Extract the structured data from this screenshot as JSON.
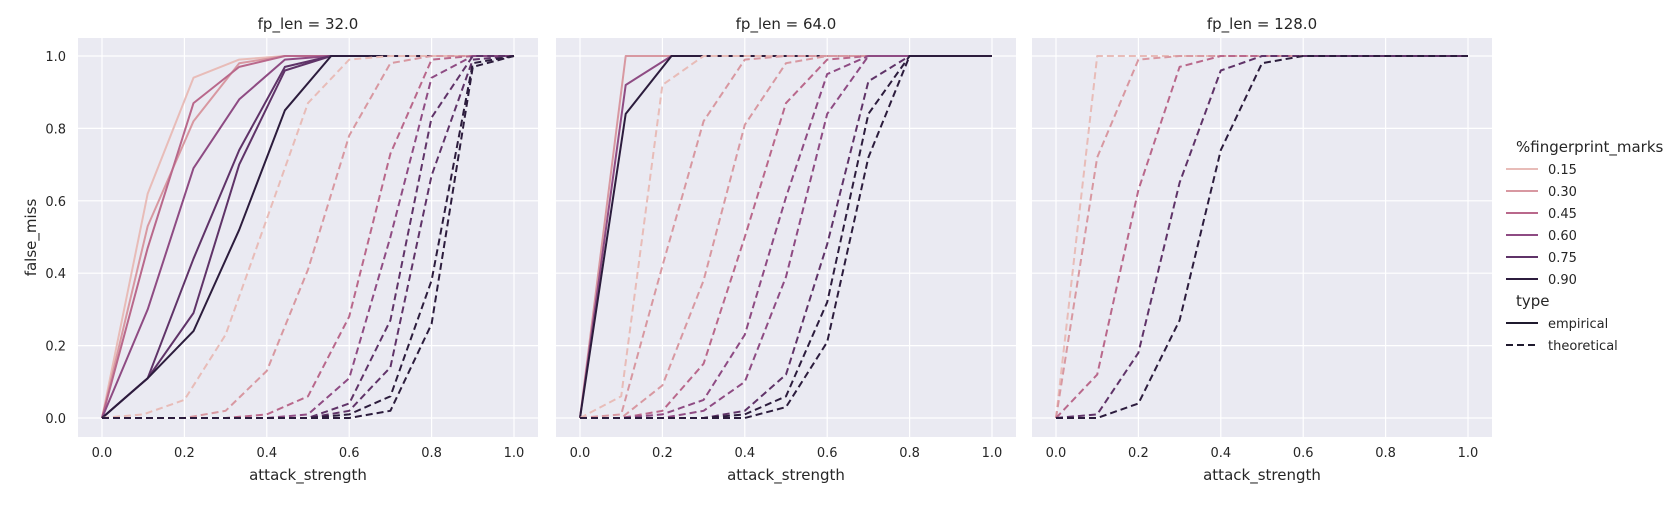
{
  "chart_data": {
    "type": "line",
    "xlabel": "attack_strength",
    "ylabel": "false_miss",
    "xlim": [
      0.0,
      1.0
    ],
    "ylim": [
      0.0,
      1.0
    ],
    "xticks": [
      "0.0",
      "0.2",
      "0.4",
      "0.6",
      "0.8",
      "1.0"
    ],
    "yticks": [
      "0.0",
      "0.2",
      "0.4",
      "0.6",
      "0.8",
      "1.0"
    ],
    "grid": true,
    "legend": {
      "placement": "right",
      "hue_title": "%fingerprint_marks",
      "hue_entries": [
        {
          "label": "0.15",
          "color": "#e8bcb8"
        },
        {
          "label": "0.30",
          "color": "#d898a1"
        },
        {
          "label": "0.45",
          "color": "#b9688b"
        },
        {
          "label": "0.60",
          "color": "#8e4b83"
        },
        {
          "label": "0.75",
          "color": "#5f3368"
        },
        {
          "label": "0.90",
          "color": "#2c1c3d"
        }
      ],
      "style_title": "type",
      "style_entries": [
        {
          "label": "empirical",
          "dash": "solid"
        },
        {
          "label": "theoretical",
          "dash": "dashed"
        }
      ]
    },
    "panels": [
      {
        "title": "fp_len = 32.0",
        "series": [
          {
            "hue": "0.15",
            "type": "empirical",
            "x": [
              0,
              0.111,
              0.222,
              0.333,
              0.444,
              0.556,
              0.667,
              0.778,
              0.889,
              1.0
            ],
            "y": [
              0,
              0.62,
              0.94,
              0.99,
              1,
              1,
              1,
              1,
              1,
              1
            ]
          },
          {
            "hue": "0.30",
            "type": "empirical",
            "x": [
              0,
              0.111,
              0.222,
              0.333,
              0.444,
              0.556,
              0.667,
              0.778,
              0.889,
              1.0
            ],
            "y": [
              0,
              0.53,
              0.82,
              0.98,
              1,
              1,
              1,
              1,
              1,
              1
            ]
          },
          {
            "hue": "0.45",
            "type": "empirical",
            "x": [
              0,
              0.111,
              0.222,
              0.333,
              0.444,
              0.556,
              0.667,
              0.778,
              0.889,
              1.0
            ],
            "y": [
              0,
              0.47,
              0.87,
              0.97,
              1,
              1,
              1,
              1,
              1,
              1
            ]
          },
          {
            "hue": "0.60",
            "type": "empirical",
            "x": [
              0,
              0.111,
              0.222,
              0.333,
              0.444,
              0.556,
              0.667,
              0.778,
              0.889,
              1.0
            ],
            "y": [
              0,
              0.3,
              0.69,
              0.88,
              0.99,
              1,
              1,
              1,
              1,
              1
            ]
          },
          {
            "hue": "0.75",
            "type": "empirical",
            "x": [
              0,
              0.111,
              0.222,
              0.333,
              0.444,
              0.556,
              0.667,
              0.778,
              0.889,
              1.0
            ],
            "y": [
              0,
              0.11,
              0.44,
              0.74,
              0.97,
              1,
              1,
              1,
              1,
              1
            ]
          },
          {
            "hue": "0.75",
            "type": "empirical",
            "x": [
              0,
              0.111,
              0.222,
              0.333,
              0.444,
              0.556,
              0.667,
              0.778,
              0.889,
              1.0
            ],
            "y": [
              0,
              0.11,
              0.29,
              0.7,
              0.96,
              1,
              1,
              1,
              1,
              1
            ]
          },
          {
            "hue": "0.90",
            "type": "empirical",
            "x": [
              0,
              0.111,
              0.222,
              0.333,
              0.444,
              0.556,
              0.667,
              0.778,
              0.889,
              1.0
            ],
            "y": [
              0,
              0.11,
              0.24,
              0.52,
              0.85,
              1,
              1,
              1,
              1,
              1
            ]
          },
          {
            "hue": "0.15",
            "type": "theoretical",
            "x": [
              0,
              0.1,
              0.2,
              0.3,
              0.4,
              0.5,
              0.6,
              0.7,
              0.8,
              0.9,
              1.0
            ],
            "y": [
              0,
              0.01,
              0.05,
              0.23,
              0.55,
              0.87,
              0.99,
              1,
              1,
              1,
              1
            ]
          },
          {
            "hue": "0.30",
            "type": "theoretical",
            "x": [
              0,
              0.1,
              0.2,
              0.3,
              0.4,
              0.5,
              0.6,
              0.7,
              0.8,
              0.9,
              1.0
            ],
            "y": [
              0,
              0,
              0,
              0.02,
              0.13,
              0.41,
              0.78,
              0.98,
              1,
              1,
              1
            ]
          },
          {
            "hue": "0.45",
            "type": "theoretical",
            "x": [
              0,
              0.1,
              0.2,
              0.3,
              0.4,
              0.5,
              0.6,
              0.7,
              0.8,
              0.9,
              1.0
            ],
            "y": [
              0,
              0,
              0,
              0,
              0.01,
              0.06,
              0.28,
              0.73,
              0.99,
              1,
              1
            ]
          },
          {
            "hue": "0.60",
            "type": "theoretical",
            "x": [
              0,
              0.1,
              0.2,
              0.3,
              0.4,
              0.5,
              0.6,
              0.7,
              0.8,
              0.9,
              1.0
            ],
            "y": [
              0,
              0,
              0,
              0,
              0,
              0.01,
              0.11,
              0.5,
              0.94,
              1,
              1
            ]
          },
          {
            "hue": "0.75",
            "type": "theoretical",
            "x": [
              0,
              0.1,
              0.2,
              0.3,
              0.4,
              0.5,
              0.6,
              0.7,
              0.8,
              0.9,
              1.0
            ],
            "y": [
              0,
              0,
              0,
              0,
              0,
              0,
              0.04,
              0.27,
              0.83,
              1,
              1
            ]
          },
          {
            "hue": "0.75",
            "type": "theoretical",
            "x": [
              0,
              0.1,
              0.2,
              0.3,
              0.4,
              0.5,
              0.6,
              0.7,
              0.8,
              0.9,
              1.0
            ],
            "y": [
              0,
              0,
              0,
              0,
              0,
              0,
              0.02,
              0.14,
              0.67,
              0.99,
              1
            ]
          },
          {
            "hue": "0.90",
            "type": "theoretical",
            "x": [
              0,
              0.1,
              0.2,
              0.3,
              0.4,
              0.5,
              0.6,
              0.7,
              0.8,
              0.9,
              1.0
            ],
            "y": [
              0,
              0,
              0,
              0,
              0,
              0,
              0.01,
              0.06,
              0.38,
              0.98,
              1
            ]
          },
          {
            "hue": "0.90",
            "type": "theoretical",
            "x": [
              0,
              0.1,
              0.2,
              0.3,
              0.4,
              0.5,
              0.6,
              0.7,
              0.8,
              0.9,
              1.0
            ],
            "y": [
              0,
              0,
              0,
              0,
              0,
              0,
              0,
              0.02,
              0.26,
              0.97,
              1
            ]
          }
        ]
      },
      {
        "title": "fp_len = 64.0",
        "series": [
          {
            "hue": "0.30",
            "type": "empirical",
            "x": [
              0,
              0.111,
              0.222,
              0.333,
              0.444,
              0.556,
              0.667,
              0.778,
              0.889,
              1.0
            ],
            "y": [
              0,
              1,
              1,
              1,
              1,
              1,
              1,
              1,
              1,
              1
            ]
          },
          {
            "hue": "0.60",
            "type": "empirical",
            "x": [
              0,
              0.111,
              0.222,
              0.333,
              0.444,
              0.556,
              0.667,
              0.778,
              0.889,
              1.0
            ],
            "y": [
              0,
              0.92,
              1,
              1,
              1,
              1,
              1,
              1,
              1,
              1
            ]
          },
          {
            "hue": "0.90",
            "type": "empirical",
            "x": [
              0,
              0.111,
              0.222,
              0.333,
              0.444,
              0.556,
              0.667,
              0.778,
              0.889,
              1.0
            ],
            "y": [
              0,
              0.84,
              1,
              1,
              1,
              1,
              1,
              1,
              1,
              1
            ]
          },
          {
            "hue": "0.15",
            "type": "theoretical",
            "x": [
              0,
              0.1,
              0.2,
              0.3,
              0.4,
              0.5,
              0.6,
              0.7,
              0.8,
              0.9,
              1.0
            ],
            "y": [
              0,
              0.06,
              0.92,
              1,
              1,
              1,
              1,
              1,
              1,
              1,
              1
            ]
          },
          {
            "hue": "0.30",
            "type": "theoretical",
            "x": [
              0,
              0.1,
              0.2,
              0.3,
              0.4,
              0.5,
              0.6,
              0.7,
              0.8,
              0.9,
              1.0
            ],
            "y": [
              0,
              0.01,
              0.42,
              0.82,
              0.99,
              1,
              1,
              1,
              1,
              1,
              1
            ]
          },
          {
            "hue": "0.30",
            "type": "theoretical",
            "x": [
              0,
              0.1,
              0.2,
              0.3,
              0.4,
              0.5,
              0.6,
              0.7,
              0.8,
              0.9,
              1.0
            ],
            "y": [
              0,
              0,
              0.09,
              0.38,
              0.81,
              0.98,
              1,
              1,
              1,
              1,
              1
            ]
          },
          {
            "hue": "0.45",
            "type": "theoretical",
            "x": [
              0,
              0.1,
              0.2,
              0.3,
              0.4,
              0.5,
              0.6,
              0.7,
              0.8,
              0.9,
              1.0
            ],
            "y": [
              0,
              0,
              0.02,
              0.15,
              0.5,
              0.87,
              0.99,
              1,
              1,
              1,
              1
            ]
          },
          {
            "hue": "0.60",
            "type": "theoretical",
            "x": [
              0,
              0.1,
              0.2,
              0.3,
              0.4,
              0.5,
              0.6,
              0.7,
              0.8,
              0.9,
              1.0
            ],
            "y": [
              0,
              0,
              0.01,
              0.05,
              0.23,
              0.61,
              0.95,
              1,
              1,
              1,
              1
            ]
          },
          {
            "hue": "0.60",
            "type": "theoretical",
            "x": [
              0,
              0.1,
              0.2,
              0.3,
              0.4,
              0.5,
              0.6,
              0.7,
              0.8,
              0.9,
              1.0
            ],
            "y": [
              0,
              0,
              0,
              0.02,
              0.1,
              0.39,
              0.84,
              1,
              1,
              1,
              1
            ]
          },
          {
            "hue": "0.75",
            "type": "theoretical",
            "x": [
              0,
              0.1,
              0.2,
              0.3,
              0.4,
              0.5,
              0.6,
              0.7,
              0.8,
              0.9,
              1.0
            ],
            "y": [
              0,
              0,
              0,
              0,
              0.02,
              0.12,
              0.48,
              0.93,
              1,
              1,
              1
            ]
          },
          {
            "hue": "0.90",
            "type": "theoretical",
            "x": [
              0,
              0.1,
              0.2,
              0.3,
              0.4,
              0.5,
              0.6,
              0.7,
              0.8,
              0.9,
              1.0
            ],
            "y": [
              0,
              0,
              0,
              0,
              0.01,
              0.06,
              0.32,
              0.84,
              1,
              1,
              1
            ]
          },
          {
            "hue": "0.90",
            "type": "theoretical",
            "x": [
              0,
              0.1,
              0.2,
              0.3,
              0.4,
              0.5,
              0.6,
              0.7,
              0.8,
              0.9,
              1.0
            ],
            "y": [
              0,
              0,
              0,
              0,
              0,
              0.03,
              0.21,
              0.72,
              1,
              1,
              1
            ]
          }
        ]
      },
      {
        "title": "fp_len = 128.0",
        "series": [
          {
            "hue": "0.15",
            "type": "theoretical",
            "x": [
              0,
              0.1,
              0.2,
              0.3,
              0.4,
              0.5,
              0.6,
              0.7,
              0.8,
              0.9,
              1.0
            ],
            "y": [
              0,
              1,
              1,
              1,
              1,
              1,
              1,
              1,
              1,
              1,
              1
            ]
          },
          {
            "hue": "0.30",
            "type": "theoretical",
            "x": [
              0,
              0.1,
              0.2,
              0.3,
              0.4,
              0.5,
              0.6,
              0.7,
              0.8,
              0.9,
              1.0
            ],
            "y": [
              0,
              0.72,
              0.99,
              1,
              1,
              1,
              1,
              1,
              1,
              1,
              1
            ]
          },
          {
            "hue": "0.45",
            "type": "theoretical",
            "x": [
              0,
              0.1,
              0.2,
              0.3,
              0.4,
              0.5,
              0.6,
              0.7,
              0.8,
              0.9,
              1.0
            ],
            "y": [
              0,
              0.12,
              0.63,
              0.97,
              1,
              1,
              1,
              1,
              1,
              1,
              1
            ]
          },
          {
            "hue": "0.75",
            "type": "theoretical",
            "x": [
              0,
              0.1,
              0.2,
              0.3,
              0.4,
              0.5,
              0.6,
              0.7,
              0.8,
              0.9,
              1.0
            ],
            "y": [
              0,
              0.01,
              0.18,
              0.65,
              0.96,
              1,
              1,
              1,
              1,
              1,
              1
            ]
          },
          {
            "hue": "0.90",
            "type": "theoretical",
            "x": [
              0,
              0.1,
              0.2,
              0.3,
              0.4,
              0.5,
              0.6,
              0.7,
              0.8,
              0.9,
              1.0
            ],
            "y": [
              0,
              0,
              0.04,
              0.27,
              0.74,
              0.98,
              1,
              1,
              1,
              1,
              1
            ]
          }
        ]
      }
    ]
  }
}
